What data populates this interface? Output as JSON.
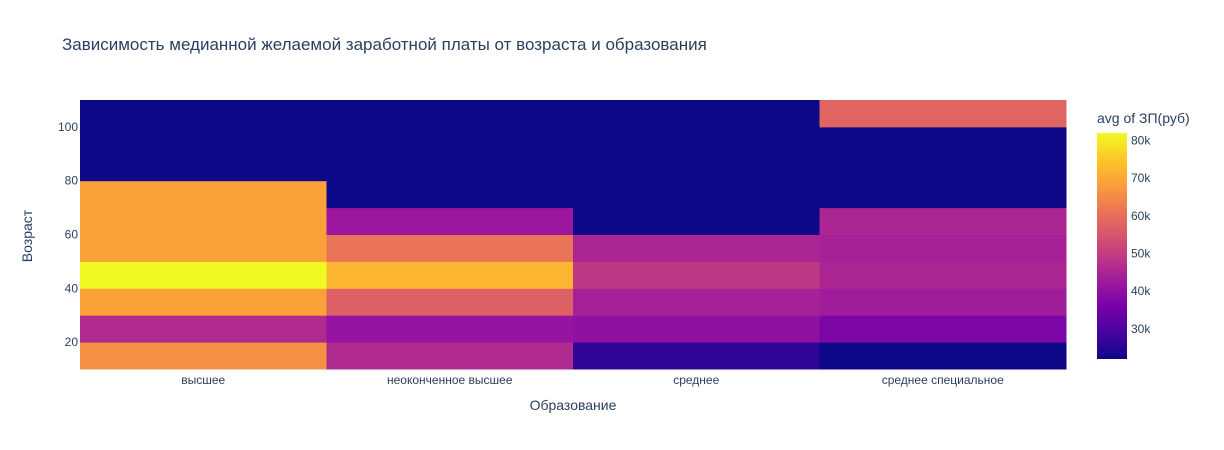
{
  "chart_data": {
    "type": "heatmap",
    "title": "Зависимость медианной желаемой заработной платы от возраста и образования",
    "xlabel": "Образование",
    "ylabel": "Возраст",
    "categories": [
      "высшее",
      "неоконченное высшее",
      "среднее",
      "среднее специальное"
    ],
    "y_bins": [
      [
        10,
        20
      ],
      [
        20,
        30
      ],
      [
        30,
        40
      ],
      [
        40,
        50
      ],
      [
        50,
        60
      ],
      [
        60,
        70
      ],
      [
        70,
        80
      ],
      [
        80,
        100
      ],
      [
        100,
        110
      ]
    ],
    "ylim": [
      10,
      110
    ],
    "y_ticks": [
      20,
      40,
      60,
      80,
      100
    ],
    "colorbar": {
      "title": "avg of ЗП(руб)",
      "range": [
        22000,
        82000
      ],
      "ticks": [
        30000,
        40000,
        50000,
        60000,
        70000,
        80000
      ],
      "tick_labels": [
        "30k",
        "40k",
        "50k",
        "60k",
        "70k",
        "80k"
      ]
    },
    "colorscale": [
      "#0d0887",
      "#46039f",
      "#7201a8",
      "#9c179e",
      "#bd3786",
      "#d8576b",
      "#ed7953",
      "#fb9f3a",
      "#fdca26",
      "#f0f921"
    ],
    "z": [
      [
        66000,
        46000,
        26000,
        22000
      ],
      [
        46000,
        41000,
        40000,
        37000
      ],
      [
        69000,
        57000,
        44000,
        43000
      ],
      [
        82000,
        72000,
        49000,
        45000
      ],
      [
        69000,
        61000,
        45000,
        44000
      ],
      [
        69000,
        42000,
        22000,
        45000
      ],
      [
        69000,
        22000,
        22000,
        22000
      ],
      [
        22000,
        22000,
        22000,
        22000
      ],
      [
        22000,
        22000,
        22000,
        58000
      ]
    ]
  }
}
